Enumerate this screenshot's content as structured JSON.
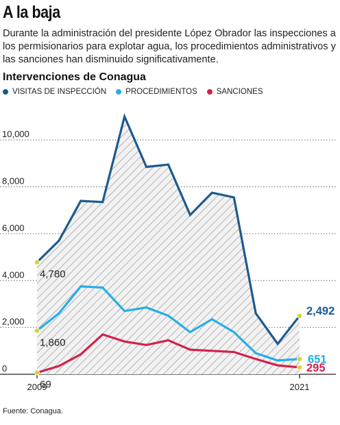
{
  "headline": "A la baja",
  "deck": "Durante la administración del presidente López Obrador las inspecciones a los permisionarios para explotar agua, los procedimientos administrativos y las sanciones han disminuido significativamente.",
  "source": "Fuente: Conagua.",
  "chart_data": {
    "type": "line",
    "title": "Intervenciones de Conagua",
    "x": [
      2009,
      2010,
      2011,
      2012,
      2013,
      2014,
      2015,
      2016,
      2017,
      2018,
      2019,
      2020,
      2021
    ],
    "x_tick_labels": [
      "2009",
      "2021"
    ],
    "ylim": [
      0,
      11000
    ],
    "y_ticks": [
      0,
      2000,
      4000,
      6000,
      8000,
      10000
    ],
    "y_tick_labels": [
      "0",
      "2,000",
      "4,000",
      "6,000",
      "8,000",
      "10,000"
    ],
    "grid": "horizontal dotted",
    "legend_position": "top-left",
    "series": [
      {
        "name": "VISITAS DE INSPECCIÓN",
        "color": "#1d5a8f",
        "values": [
          4780,
          5700,
          7400,
          7350,
          11000,
          8850,
          8950,
          6800,
          7750,
          7550,
          2600,
          1300,
          2492
        ],
        "label_start": "4,780",
        "label_end": "2,492",
        "fill": "hatched"
      },
      {
        "name": "PROCEDIMIENTOS",
        "color": "#25aee8",
        "values": [
          1860,
          2600,
          3750,
          3700,
          2700,
          2850,
          2500,
          1800,
          2350,
          1800,
          900,
          590,
          651
        ],
        "label_start": "1,860",
        "label_end": "651"
      },
      {
        "name": "SANCIONES",
        "color": "#d2224d",
        "values": [
          69,
          350,
          850,
          1700,
          1400,
          1250,
          1450,
          1050,
          1000,
          950,
          650,
          380,
          295
        ],
        "label_start": "69",
        "label_end": "295"
      }
    ],
    "endpoint_marker_color": "#d6d43a"
  }
}
